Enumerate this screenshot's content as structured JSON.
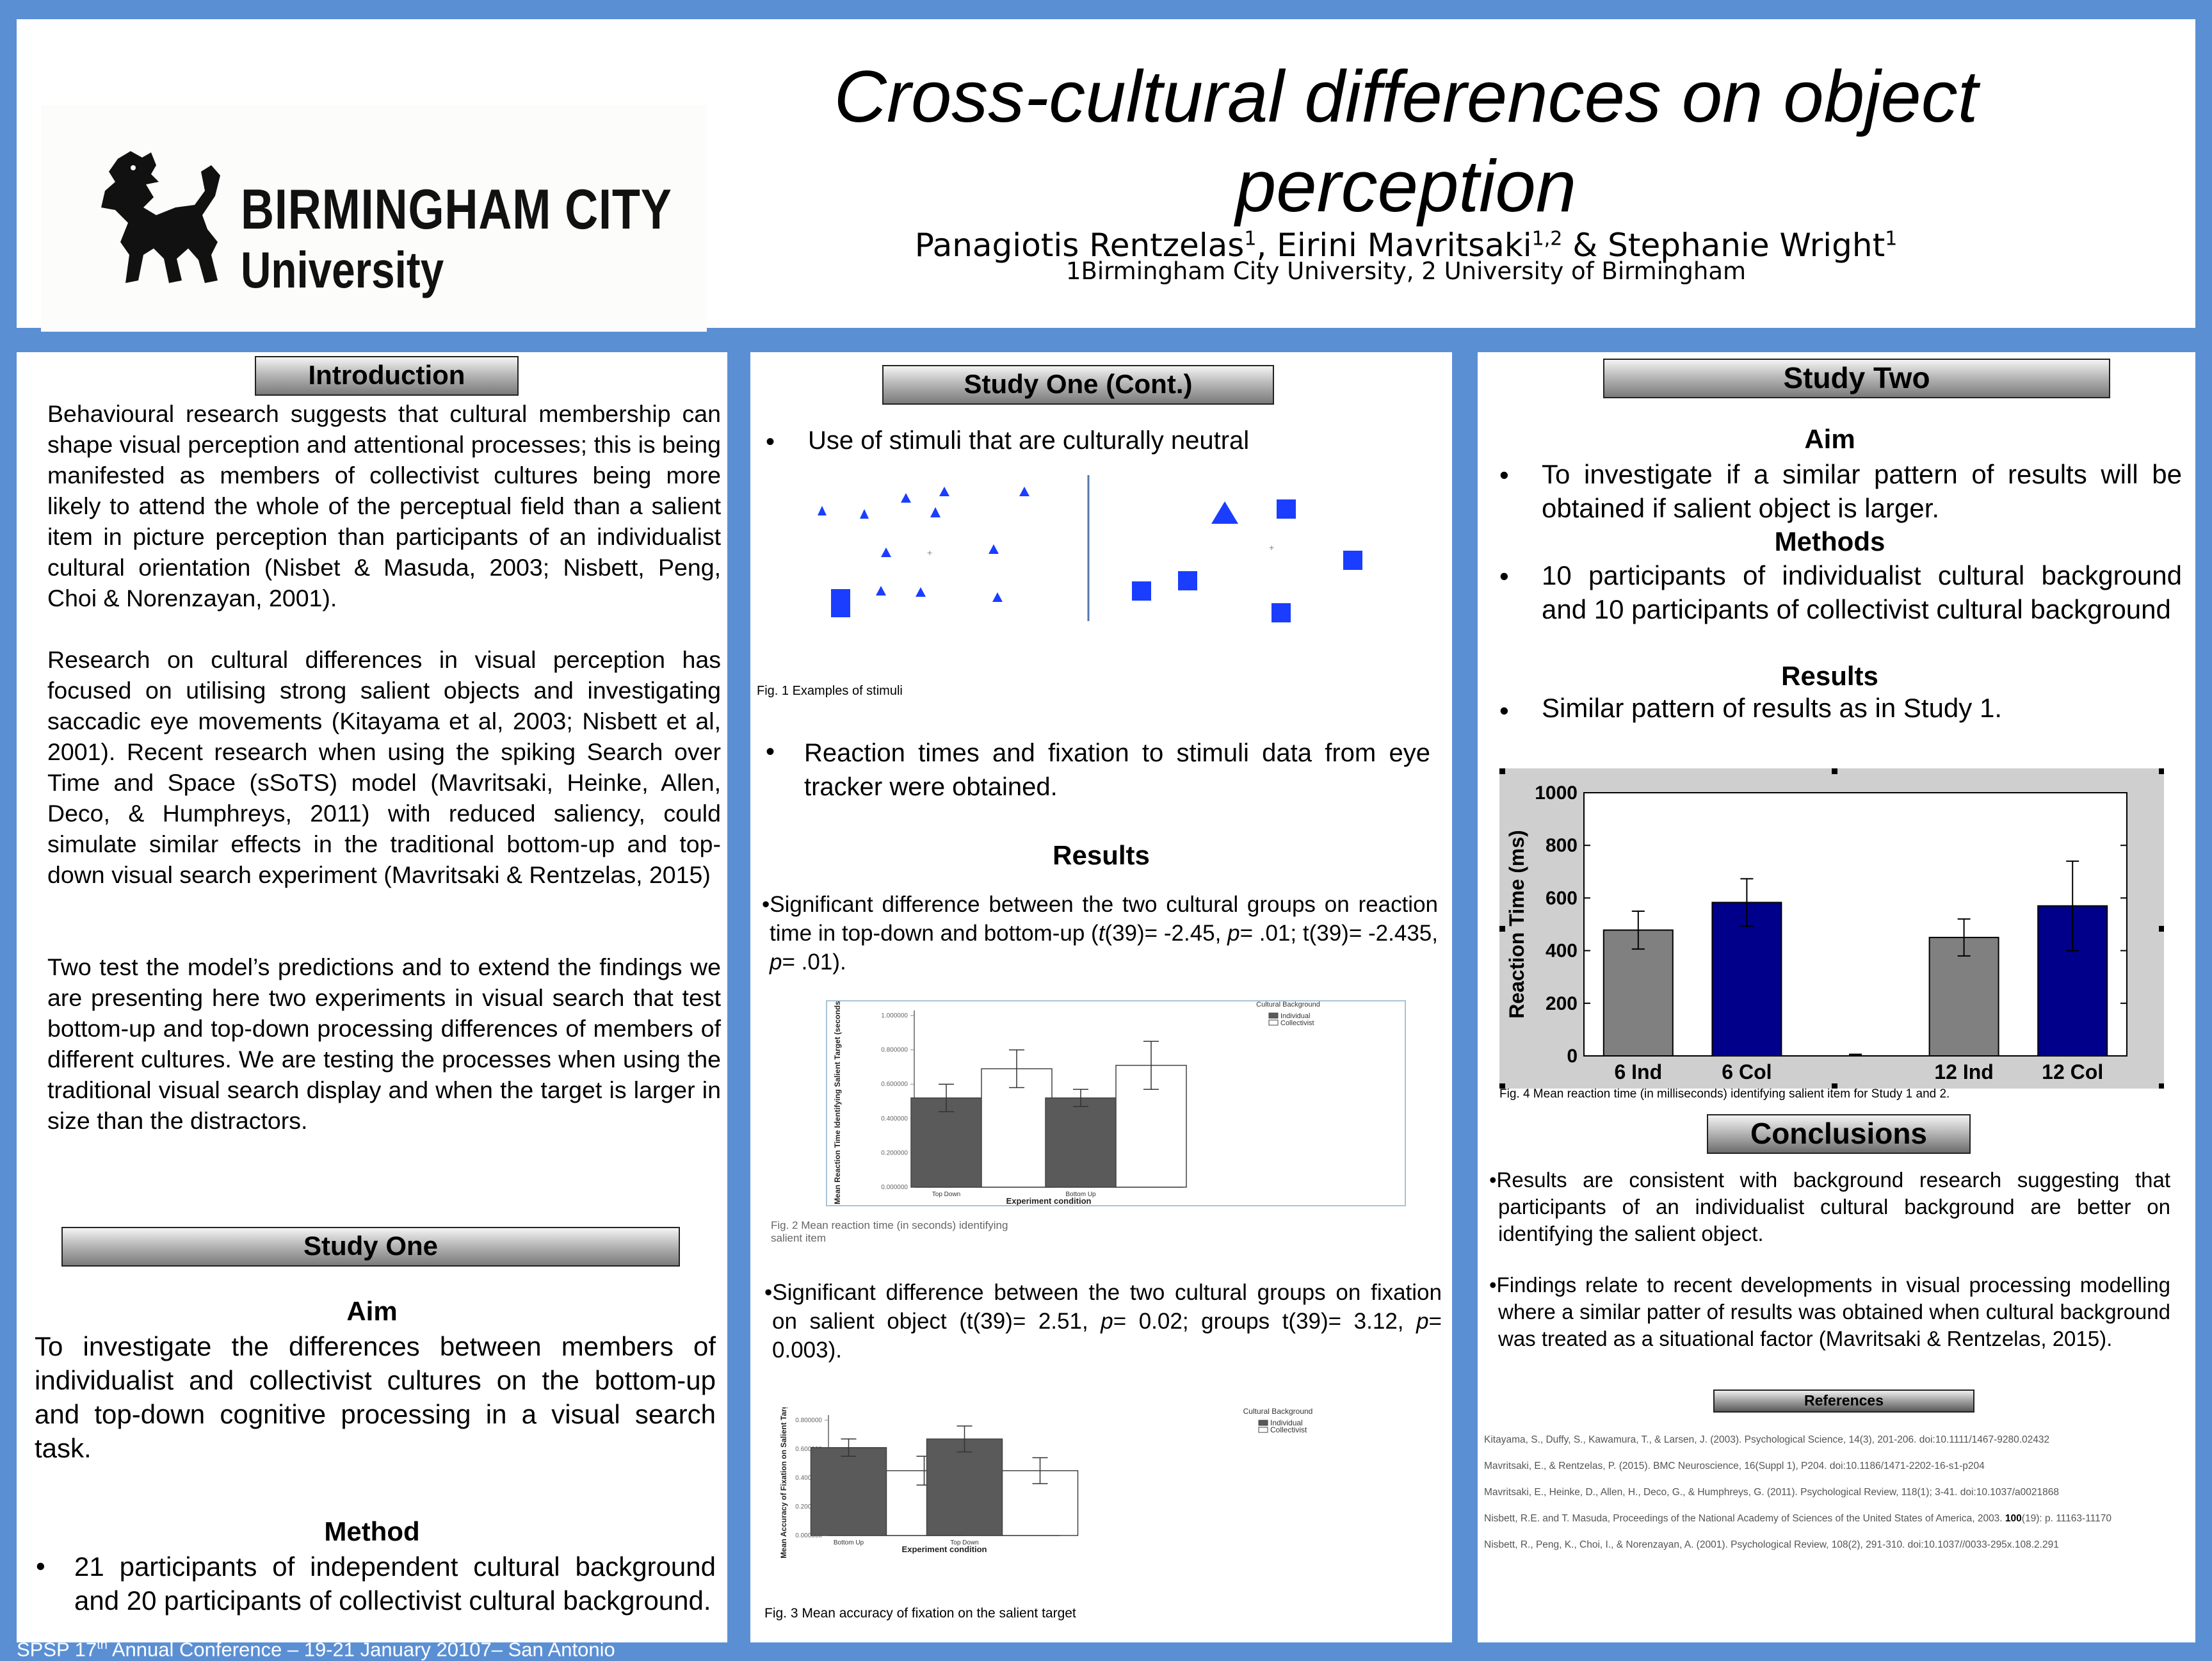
{
  "header": {
    "title_line1": "Cross-cultural differences on object",
    "title_line2": "perception",
    "authors_a": "Panagiotis Rentzelas",
    "authors_a_sup": "1",
    "authors_b": ", Eirini Mavritsaki",
    "authors_b_sup": "1,2",
    "authors_c": " & Stephanie Wright",
    "authors_c_sup": "1",
    "affiliations": "1Birmingham City University, 2 University of Birmingham",
    "logo_line1": "BIRMINGHAM CITY",
    "logo_line2": "University"
  },
  "intro": {
    "heading": "Introduction",
    "p1": "Behavioural research suggests that cultural membership can shape visual perception and attentional processes; this is being manifested as members of collectivist cultures being more likely to attend the whole of the perceptual field than a salient item in picture perception than participants of an individualist cultural orientation (Nisbet & Masuda, 2003; Nisbett, Peng, Choi & Norenzayan, 2001).",
    "p2": "Research on cultural differences in visual perception has focused on utilising strong salient objects and investigating saccadic eye movements (Kitayama et al, 2003; Nisbett et al, 2001). Recent research when using the spiking Search over Time and Space (sSoTS) model (Mavritsaki, Heinke, Allen, Deco, & Humphreys, 2011) with reduced saliency, could simulate similar effects in the traditional bottom-up and top-down visual search experiment (Mavritsaki  & Rentzelas, 2015)",
    "p3": "Two test the model’s predictions and to extend the findings we are presenting here two experiments in visual search that test bottom-up and top-down processing differences of members of different cultures. We are testing the processes when using the traditional visual search display and when the target is larger in size than the distractors."
  },
  "study_one": {
    "heading": "Study One",
    "aim_heading": "Aim",
    "aim_text": "To investigate the differences between members of individualist and collectivist cultures on the  bottom-up and top-down cognitive processing in a visual search task.",
    "method_heading": "Method",
    "method_bullet": "21 participants of independent cultural background and 20 participants of collectivist cultural background."
  },
  "footer": {
    "conference": "SPSP 17",
    "conference_sup": "th",
    "conference_rest": " Annual Conference – 19-21 January 20107– San Antonio"
  },
  "study_one_cont": {
    "heading": "Study One (Cont.)",
    "bullet1": "Use of stimuli that are culturally neutral",
    "fig1_caption": "Fig. 1 Examples of stimuli",
    "bullet2": "Reaction times and fixation to stimuli data from eye tracker were obtained.",
    "results_heading": "Results",
    "result1_a": "•Significant difference between the two cultural groups on reaction time in top-down and bottom-up (",
    "result1_t1": "t",
    "result1_b": "(39)= -2.45, ",
    "result1_p1": "p",
    "result1_c": "= .01; t(39)= -2.435, ",
    "result1_p2": "p",
    "result1_d": "= .01).",
    "fig2_caption": "Fig. 2  Mean reaction time (in seconds) identifying salient item",
    "result2_a": "•Significant difference between the two cultural groups on fixation on salient object (t(39)= 2.51, ",
    "result2_p1": "p",
    "result2_b": "= 0.02; groups t(39)= 3.12, ",
    "result2_p2": "p",
    "result2_c": "= 0.003).",
    "fig3_caption": "Fig. 3 Mean accuracy of fixation on the salient target"
  },
  "study_two": {
    "heading": "Study Two",
    "aim_heading": "Aim",
    "aim_bullet": "To investigate if a similar pattern of results will be obtained if salient object is larger.",
    "methods_heading": "Methods",
    "methods_bullet": "10 participants of individualist cultural background and 10 participants of collectivist cultural background",
    "results_heading": "Results",
    "results_bullet": "Similar pattern of results as in Study 1.",
    "fig4_caption": "Fig. 4  Mean reaction time (in milliseconds) identifying salient item for Study 1 and 2."
  },
  "conclusions": {
    "heading": "Conclusions",
    "c1": "•Results are consistent with background research suggesting that participants of an individualist cultural background are better on identifying the salient object.",
    "c2": "•Findings relate to recent developments in visual processing modelling where a similar patter of results was obtained when cultural background was treated as a situational factor (Mavritsaki & Rentzelas, 2015)."
  },
  "references": {
    "heading": "References",
    "r1": "Kitayama, S., Duffy, S., Kawamura, T., & Larsen, J. (2003). Psychological Science, 14(3), 201-206. doi:10.1111/1467-9280.02432",
    "r2": "Mavritsaki, E., & Rentzelas, P. (2015). BMC Neuroscience, 16(Suppl 1), P204. doi:10.1186/1471-2202-16-s1-p204",
    "r3": "Mavritsaki, E., Heinke, D., Allen, H., Deco, G., & Humphreys, G. (2011). Psychological Review, 118(1); 3-41. doi:10.1037/a0021868",
    "r4a": "Nisbett, R.E. and T. Masuda, Proceedings of the National Academy of Sciences of the United States of America, 2003. ",
    "r4b": "100",
    "r4c": "(19): p. 11163-11170",
    "r5": "Nisbett, R., Peng, K., Choi, I., & Norenzayan, A. (2001). Psychological Review, 108(2), 291-310. doi:10.1037//0033-295x.108.2.291"
  },
  "colors": {
    "border": "#5b8fd4",
    "col_bar": "#00008b",
    "ind_bar": "#808080",
    "fig_bar": "#5a5a5a",
    "stimulus": "#1a3dff"
  },
  "chart_data": [
    {
      "id": "fig2",
      "type": "bar",
      "categories": [
        "Top Down",
        "Bottom Up"
      ],
      "xlabel": "Experiment condition",
      "ylabel": "Mean Reaction Time Identifying Salient Target (seconds)",
      "legend_title": "Cultural Background",
      "ylim": [
        0,
        1.0
      ],
      "yticks": [
        "0.000000",
        "0.200000",
        "0.400000",
        "0.600000",
        "0.800000",
        "1.000000"
      ],
      "series": [
        {
          "name": "Individual",
          "values": [
            0.52,
            0.52
          ],
          "err": [
            0.08,
            0.05
          ]
        },
        {
          "name": "Collectivist",
          "values": [
            0.69,
            0.71
          ],
          "err": [
            0.11,
            0.14
          ]
        }
      ],
      "legend": "top-right"
    },
    {
      "id": "fig3",
      "type": "bar",
      "categories": [
        "Bottom Up",
        "Top Down"
      ],
      "xlabel": "Experiment condition",
      "ylabel": "Mean Accuracy of Fixation on Salient Target",
      "legend_title": "Cultural Background",
      "ylim": [
        0,
        0.8
      ],
      "yticks": [
        "0.000000",
        "0.200000",
        "0.400000",
        "0.600000",
        "0.800000"
      ],
      "series": [
        {
          "name": "Individual",
          "values": [
            0.61,
            0.67
          ],
          "err": [
            0.06,
            0.09
          ]
        },
        {
          "name": "Collectivist",
          "values": [
            0.45,
            0.45
          ],
          "err": [
            0.1,
            0.09
          ]
        }
      ],
      "legend": "top-right"
    },
    {
      "id": "fig4",
      "type": "bar",
      "categories": [
        "6 Ind",
        "6 Col",
        "",
        "12 Ind",
        "12 Col"
      ],
      "values": [
        478,
        583,
        0,
        450,
        570
      ],
      "err": [
        72,
        90,
        0,
        70,
        170
      ],
      "ylabel": "Reaction Time (ms)",
      "ylim": [
        0,
        1000
      ],
      "yticks": [
        "0",
        "200",
        "400",
        "600",
        "800",
        "1000"
      ]
    }
  ]
}
